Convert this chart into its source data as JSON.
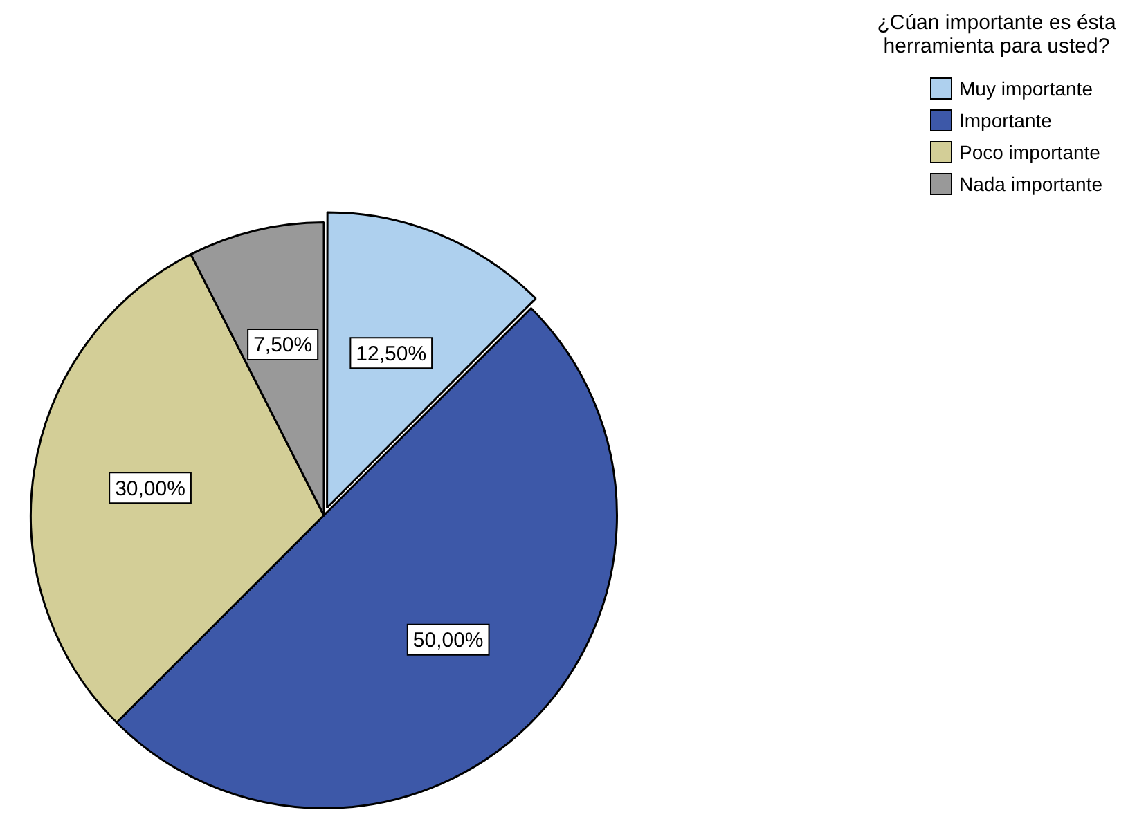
{
  "chart_data": {
    "type": "pie",
    "legend_title": "¿Cúan importante es ésta herramienta para usted?",
    "legend": "top right",
    "categories": [
      "Muy importante",
      "Importante",
      "Poco importante",
      "Nada importante"
    ],
    "values": [
      12.5,
      50,
      30,
      7.5
    ],
    "colors": [
      "#aed0ee",
      "#3d58a8",
      "#d3ce97",
      "#999999"
    ],
    "value_labels": [
      "12,50%",
      "50,00%",
      "30,00%",
      "7,50%"
    ]
  }
}
